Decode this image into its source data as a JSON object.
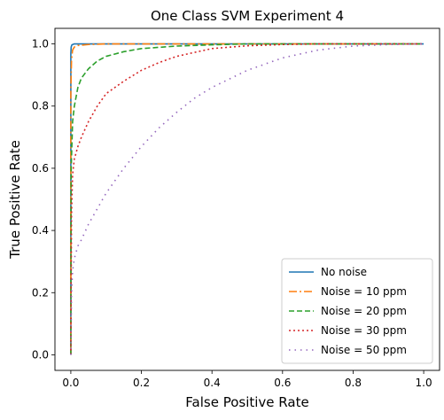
{
  "chart_data": {
    "type": "line",
    "title": "One Class SVM Experiment 4",
    "xlabel": "False Positive Rate",
    "ylabel": "True Positive Rate",
    "xlim": [
      -0.045,
      1.045
    ],
    "ylim": [
      -0.05,
      1.05
    ],
    "xticks": [
      "0.0",
      "0.2",
      "0.4",
      "0.6",
      "0.8",
      "1.0"
    ],
    "yticks": [
      "0.0",
      "0.2",
      "0.4",
      "0.6",
      "0.8",
      "1.0"
    ],
    "grid": false,
    "legend_position": "lower-right",
    "series": [
      {
        "name": "No noise",
        "color": "#1f77b4",
        "style": "solid",
        "x": [
          0.0,
          0.0,
          0.001,
          0.003,
          0.01,
          0.03,
          1.0
        ],
        "y": [
          0.0,
          0.97,
          0.99,
          0.997,
          1.0,
          1.0,
          1.0
        ]
      },
      {
        "name": "Noise = 10 ppm",
        "color": "#ff7f0e",
        "style": "dashdot",
        "x": [
          0.0,
          0.0,
          0.002,
          0.005,
          0.01,
          0.02,
          0.05,
          0.1,
          1.0
        ],
        "y": [
          0.0,
          0.85,
          0.95,
          0.98,
          0.99,
          0.995,
          0.998,
          1.0,
          1.0
        ]
      },
      {
        "name": "Noise = 20 ppm",
        "color": "#2ca02c",
        "style": "dashed",
        "x": [
          0.0,
          0.001,
          0.005,
          0.01,
          0.02,
          0.03,
          0.05,
          0.075,
          0.1,
          0.15,
          0.2,
          0.3,
          0.4,
          0.5,
          1.0
        ],
        "y": [
          0.0,
          0.6,
          0.75,
          0.8,
          0.86,
          0.89,
          0.92,
          0.945,
          0.96,
          0.975,
          0.985,
          0.993,
          0.997,
          1.0,
          1.0
        ]
      },
      {
        "name": "Noise = 30 ppm",
        "color": "#d62728",
        "style": "dotted",
        "x": [
          0.0,
          0.002,
          0.005,
          0.01,
          0.02,
          0.03,
          0.05,
          0.075,
          0.1,
          0.15,
          0.2,
          0.25,
          0.3,
          0.4,
          0.5,
          0.6,
          0.7,
          1.0
        ],
        "y": [
          0.0,
          0.45,
          0.58,
          0.63,
          0.67,
          0.7,
          0.75,
          0.8,
          0.84,
          0.88,
          0.915,
          0.94,
          0.96,
          0.985,
          0.994,
          0.998,
          1.0,
          1.0
        ]
      },
      {
        "name": "Noise = 50 ppm",
        "color": "#9467bd",
        "style": "loosedotted",
        "x": [
          0.0,
          0.002,
          0.005,
          0.01,
          0.02,
          0.03,
          0.05,
          0.075,
          0.1,
          0.125,
          0.15,
          0.2,
          0.25,
          0.3,
          0.35,
          0.4,
          0.5,
          0.6,
          0.7,
          0.8,
          0.9,
          1.0
        ],
        "y": [
          0.0,
          0.2,
          0.27,
          0.31,
          0.35,
          0.37,
          0.42,
          0.47,
          0.52,
          0.56,
          0.6,
          0.67,
          0.73,
          0.78,
          0.825,
          0.86,
          0.915,
          0.955,
          0.98,
          0.993,
          0.998,
          1.0
        ]
      }
    ]
  }
}
